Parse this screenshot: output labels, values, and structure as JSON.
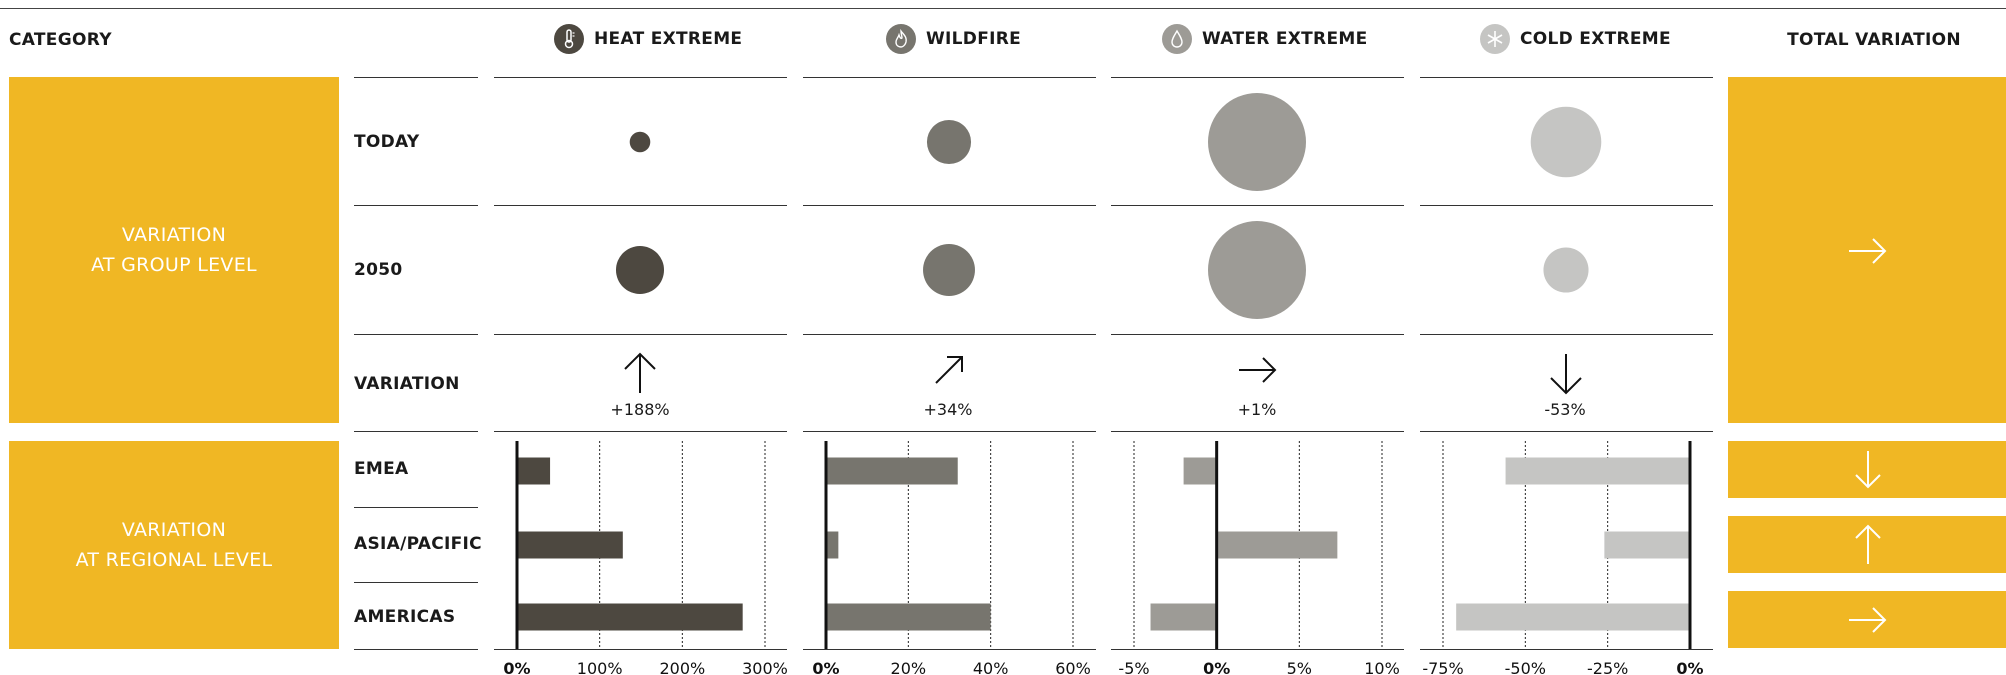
{
  "header": {
    "category": "CATEGORY",
    "columns": [
      {
        "label": "HEAT EXTREME",
        "icon": "thermometer-icon",
        "color": "#4d4840"
      },
      {
        "label": "WILDFIRE",
        "icon": "flame-icon",
        "color": "#77756e"
      },
      {
        "label": "WATER EXTREME",
        "icon": "water-drop-icon",
        "color": "#9d9b96"
      },
      {
        "label": "COLD EXTREME",
        "icon": "snowflake-icon",
        "color": "#c5c5c3"
      }
    ],
    "total": "TOTAL VARIATION"
  },
  "groups": {
    "group_level": "VARIATION\nAT GROUP LEVEL",
    "regional_level": "VARIATION\nAT REGIONAL LEVEL"
  },
  "rows": {
    "today": "TODAY",
    "y2050": "2050",
    "variation": "VARIATION",
    "emea": "EMEA",
    "asia": "ASIA/PACIFIC",
    "americas": "AMERICAS"
  },
  "accent": "#F0B724",
  "chart_data": {
    "type": "bar",
    "group_level": {
      "today_size_relative": [
        0.21,
        0.45,
        1.0,
        0.72
      ],
      "y2050_size_relative": [
        0.49,
        0.53,
        1.0,
        0.46
      ],
      "variation_labels": [
        "+188%",
        "+34%",
        "+1%",
        "-53%"
      ],
      "variation_arrows": [
        "up",
        "up-right",
        "right",
        "down"
      ],
      "total_arrow": "right"
    },
    "regional_level": {
      "categories": [
        "EMEA",
        "ASIA/PACIFIC",
        "AMERICAS"
      ],
      "series": [
        {
          "name": "HEAT EXTREME",
          "values": [
            40,
            128,
            273
          ],
          "xlim": [
            0,
            300
          ],
          "ticks": [
            "0%",
            "100%",
            "200%",
            "300%"
          ]
        },
        {
          "name": "WILDFIRE",
          "values": [
            32,
            3,
            40
          ],
          "xlim": [
            0,
            60
          ],
          "ticks": [
            "0%",
            "20%",
            "40%",
            "60%"
          ]
        },
        {
          "name": "WATER EXTREME",
          "values": [
            -2,
            7.3,
            -4
          ],
          "xlim": [
            -5,
            10
          ],
          "ticks": [
            "-5%",
            "0%",
            "5%",
            "10%"
          ]
        },
        {
          "name": "COLD EXTREME",
          "values": [
            -56,
            -26,
            -71
          ],
          "xlim": [
            -75,
            0
          ],
          "ticks": [
            "-75%",
            "-50%",
            "-25%",
            "0%"
          ]
        }
      ],
      "total_arrows": [
        "down",
        "up",
        "right"
      ]
    }
  }
}
